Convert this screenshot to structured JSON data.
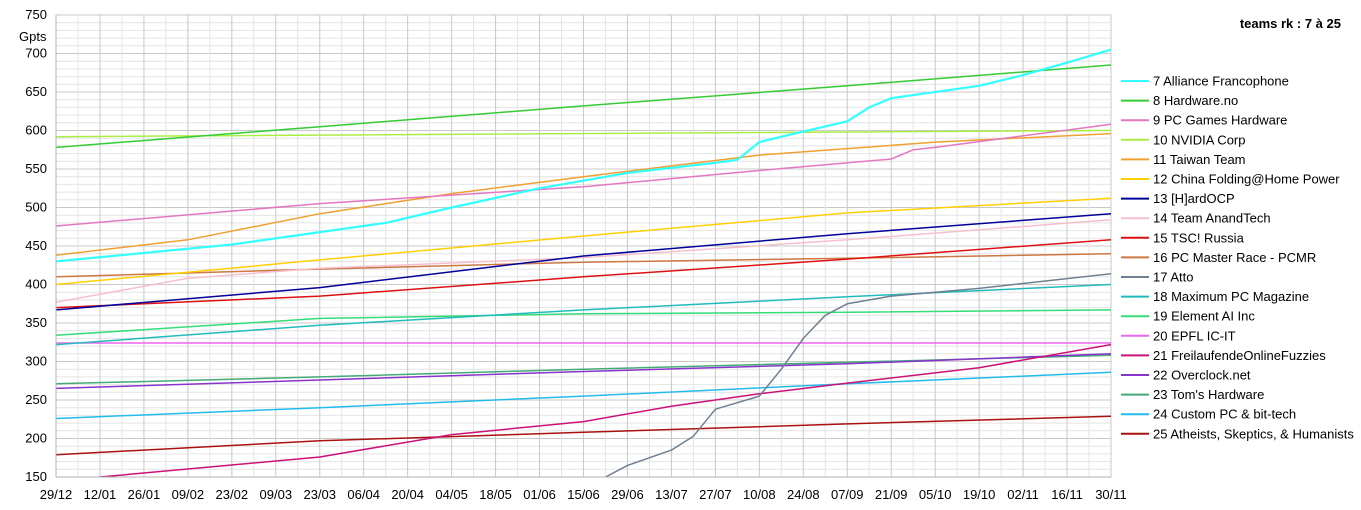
{
  "chart_data": {
    "type": "line",
    "title": "teams rk : 7 à 25",
    "ylabel": "Gpts",
    "xlabel": "",
    "ylim": [
      150,
      750
    ],
    "ytick_step": 50,
    "grid": true,
    "legend_position": "right",
    "x_tick_labels": [
      "29/12",
      "12/01",
      "26/01",
      "09/02",
      "23/02",
      "09/03",
      "23/03",
      "06/04",
      "20/04",
      "04/05",
      "18/05",
      "01/06",
      "15/06",
      "29/06",
      "13/07",
      "27/07",
      "10/08",
      "24/08",
      "07/09",
      "21/09",
      "05/10",
      "19/10",
      "02/11",
      "16/11",
      "30/11"
    ],
    "series": [
      {
        "name": "7 Alliance Francophone",
        "color": "#33ffff",
        "points": [
          [
            0,
            430
          ],
          [
            4,
            452
          ],
          [
            6,
            468
          ],
          [
            7.5,
            480
          ],
          [
            9,
            500
          ],
          [
            11,
            525
          ],
          [
            13,
            545
          ],
          [
            15,
            558
          ],
          [
            15.5,
            562
          ],
          [
            16,
            585
          ],
          [
            16.5,
            592
          ],
          [
            18,
            612
          ],
          [
            18.5,
            630
          ],
          [
            19,
            642
          ],
          [
            21,
            658
          ],
          [
            22,
            672
          ],
          [
            23,
            688
          ],
          [
            24,
            705
          ]
        ]
      },
      {
        "name": "8 Hardware.no",
        "color": "#33cc33",
        "points": [
          [
            0,
            578
          ],
          [
            6,
            605
          ],
          [
            12,
            632
          ],
          [
            18,
            658
          ],
          [
            24,
            685
          ]
        ]
      },
      {
        "name": "9 PC Games Hardware",
        "color": "#e377c2",
        "points": [
          [
            0,
            476
          ],
          [
            6,
            505
          ],
          [
            12,
            527
          ],
          [
            16,
            548
          ],
          [
            19,
            563
          ],
          [
            19.5,
            575
          ],
          [
            20,
            578
          ],
          [
            24,
            608
          ]
        ]
      },
      {
        "name": "10 NVIDIA Corp",
        "color": "#aaee44",
        "points": [
          [
            0,
            592
          ],
          [
            24,
            600
          ]
        ]
      },
      {
        "name": "11 Taiwan Team",
        "color": "#f0a030",
        "points": [
          [
            0,
            438
          ],
          [
            3,
            458
          ],
          [
            6,
            492
          ],
          [
            9,
            518
          ],
          [
            12,
            540
          ],
          [
            16,
            568
          ],
          [
            20,
            585
          ],
          [
            24,
            596
          ]
        ]
      },
      {
        "name": "12 China Folding@Home Power",
        "color": "#ffd000",
        "points": [
          [
            0,
            400
          ],
          [
            6,
            432
          ],
          [
            12,
            463
          ],
          [
            18,
            493
          ],
          [
            24,
            512
          ]
        ]
      },
      {
        "name": "13 [H]ardOCP",
        "color": "#000099",
        "points": [
          [
            0,
            367
          ],
          [
            6,
            396
          ],
          [
            12,
            437
          ],
          [
            18,
            466
          ],
          [
            24,
            492
          ]
        ]
      },
      {
        "name": "14 Team AnandTech",
        "color": "#f5c0cc",
        "points": [
          [
            0,
            377
          ],
          [
            3,
            408
          ],
          [
            6,
            421
          ],
          [
            12,
            435
          ],
          [
            18,
            458
          ],
          [
            24,
            484
          ]
        ]
      },
      {
        "name": "15 TSC! Russia",
        "color": "#dd1111",
        "points": [
          [
            0,
            370
          ],
          [
            6,
            385
          ],
          [
            12,
            410
          ],
          [
            18,
            433
          ],
          [
            24,
            458
          ]
        ]
      },
      {
        "name": "16 PC Master Race - PCMR",
        "color": "#cc7744",
        "points": [
          [
            0,
            410
          ],
          [
            6,
            420
          ],
          [
            12,
            429
          ],
          [
            18,
            434
          ],
          [
            24,
            440
          ]
        ]
      },
      {
        "name": "17 Atto",
        "color": "#708090",
        "points": [
          [
            12.5,
            150
          ],
          [
            13,
            165
          ],
          [
            14,
            185
          ],
          [
            14.5,
            203
          ],
          [
            15,
            238
          ],
          [
            16,
            255
          ],
          [
            16.5,
            290
          ],
          [
            17,
            330
          ],
          [
            17.5,
            360
          ],
          [
            18,
            375
          ],
          [
            19,
            385
          ],
          [
            21,
            395
          ],
          [
            24,
            414
          ]
        ]
      },
      {
        "name": "18 Maximum PC Magazine",
        "color": "#22bbbb",
        "points": [
          [
            0,
            322
          ],
          [
            6,
            347
          ],
          [
            12,
            367
          ],
          [
            18,
            384
          ],
          [
            24,
            400
          ]
        ]
      },
      {
        "name": "19 Element AI Inc",
        "color": "#33dd77",
        "points": [
          [
            0,
            334
          ],
          [
            6,
            356
          ],
          [
            12,
            362
          ],
          [
            18,
            364
          ],
          [
            24,
            367
          ]
        ]
      },
      {
        "name": "20 EPFL IC-IT",
        "color": "#ee66ee",
        "points": [
          [
            0,
            324
          ],
          [
            24,
            324
          ]
        ]
      },
      {
        "name": "21 FreilaufendeOnlineFuzzies",
        "color": "#cc1177",
        "points": [
          [
            1,
            150
          ],
          [
            6,
            176
          ],
          [
            9,
            205
          ],
          [
            12,
            222
          ],
          [
            14,
            242
          ],
          [
            16,
            258
          ],
          [
            18,
            272
          ],
          [
            21,
            292
          ],
          [
            24,
            322
          ]
        ]
      },
      {
        "name": "22 Overclock.net",
        "color": "#8833cc",
        "points": [
          [
            0,
            265
          ],
          [
            6,
            276
          ],
          [
            12,
            287
          ],
          [
            18,
            297
          ],
          [
            24,
            310
          ]
        ]
      },
      {
        "name": "23 Tom's Hardware",
        "color": "#44aa77",
        "points": [
          [
            0,
            271
          ],
          [
            6,
            280
          ],
          [
            12,
            290
          ],
          [
            18,
            299
          ],
          [
            24,
            308
          ]
        ]
      },
      {
        "name": "24 Custom PC & bit-tech",
        "color": "#22bbee",
        "points": [
          [
            0,
            226
          ],
          [
            6,
            240
          ],
          [
            12,
            255
          ],
          [
            18,
            271
          ],
          [
            24,
            286
          ]
        ]
      },
      {
        "name": "25 Atheists, Skeptics, & Humanists",
        "color": "#aa1111",
        "points": [
          [
            0,
            179
          ],
          [
            6,
            197
          ],
          [
            12,
            208
          ],
          [
            18,
            219
          ],
          [
            24,
            229
          ]
        ]
      }
    ]
  }
}
